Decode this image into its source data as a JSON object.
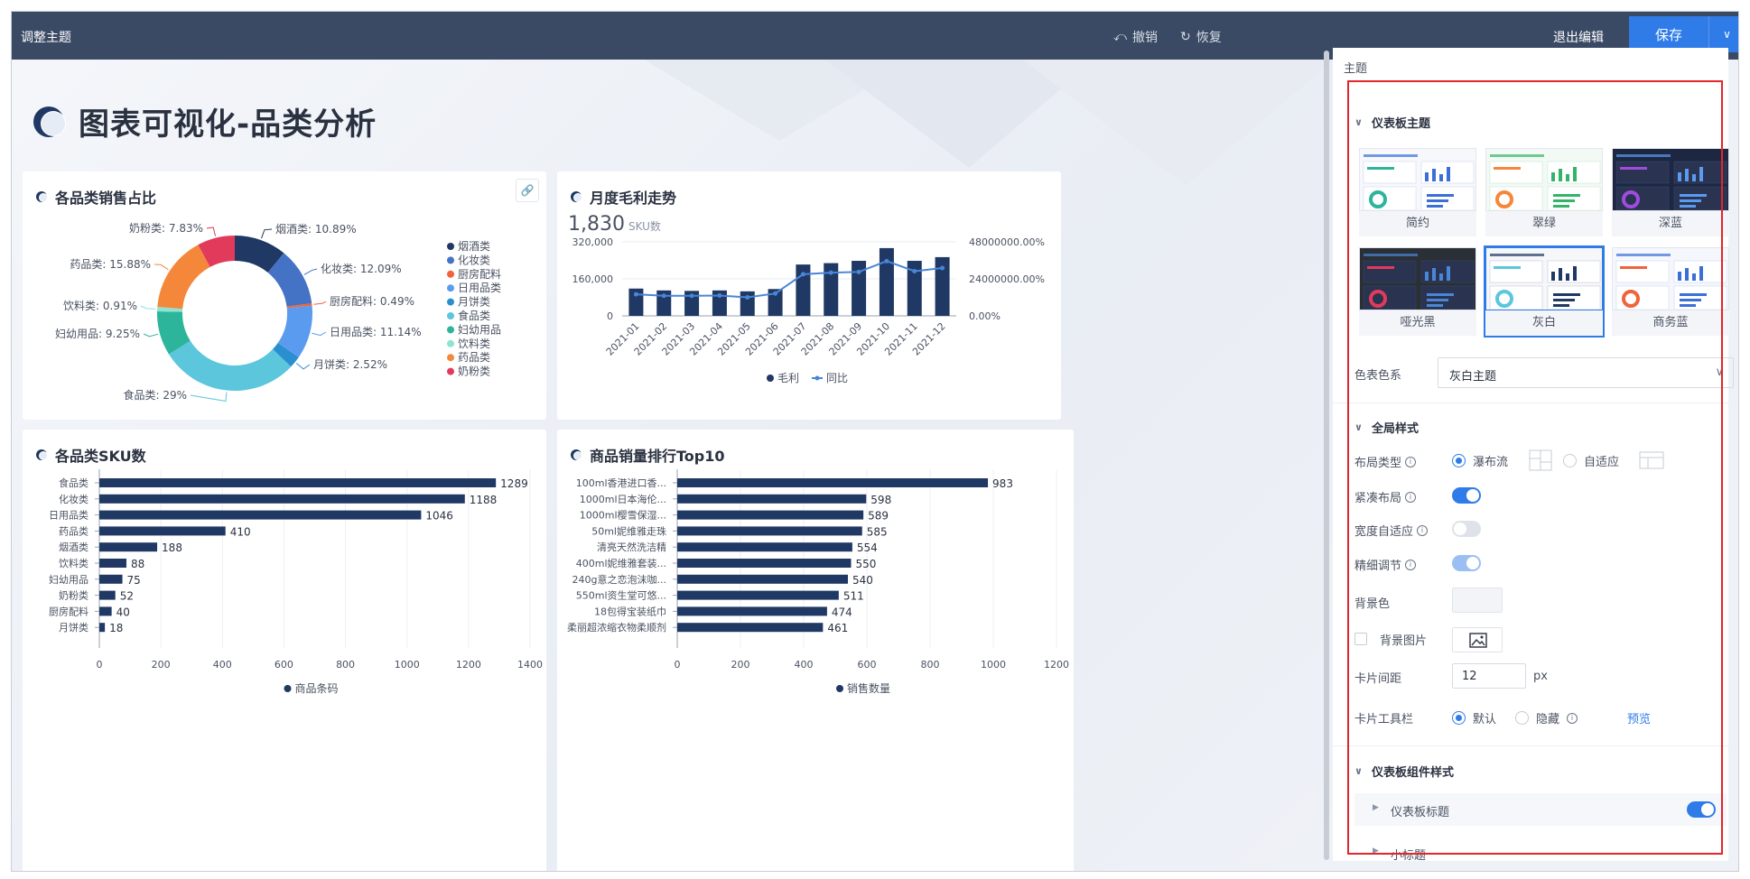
{
  "topbar": {
    "title": "调整主题",
    "undo": "撤销",
    "redo": "恢复",
    "exit": "退出编辑",
    "save": "保存"
  },
  "dashboard": {
    "title": "图表可视化-品类分析"
  },
  "cards": {
    "pie": {
      "title": "各品类销售占比"
    },
    "combo": {
      "title": "月度毛利走势",
      "kpi_value": "1,830",
      "kpi_unit": "SKU数"
    },
    "sku": {
      "title": "各品类SKU数"
    },
    "top10": {
      "title": "商品销量排行Top10"
    }
  },
  "chart_data": [
    {
      "type": "pie",
      "title": "各品类销售占比",
      "slices": [
        {
          "name": "烟酒类",
          "value": 10.89,
          "label": "烟酒类: 10.89%",
          "color": "#1f3864"
        },
        {
          "name": "化妆类",
          "value": 12.09,
          "label": "化妆类: 12.09%",
          "color": "#4472c4"
        },
        {
          "name": "厨房配料",
          "value": 0.49,
          "label": "厨房配料: 0.49%",
          "color": "#f0643b"
        },
        {
          "name": "日用品类",
          "value": 11.14,
          "label": "日用品类: 11.14%",
          "color": "#5b9bef"
        },
        {
          "name": "月饼类",
          "value": 2.52,
          "label": "月饼类: 2.52%",
          "color": "#2a8fcf"
        },
        {
          "name": "食品类",
          "value": 29,
          "label": "食品类: 29%",
          "color": "#5bc6dc"
        },
        {
          "name": "妇幼用品",
          "value": 9.25,
          "label": "妇幼用品: 9.25%",
          "color": "#2db59b"
        },
        {
          "name": "饮料类",
          "value": 0.91,
          "label": "饮料类: 0.91%",
          "color": "#8fe3d3"
        },
        {
          "name": "药品类",
          "value": 15.88,
          "label": "药品类: 15.88%",
          "color": "#f5873a"
        },
        {
          "name": "奶粉类",
          "value": 7.83,
          "label": "奶粉类: 7.83%",
          "color": "#e23a5a"
        }
      ],
      "legend": [
        "烟酒类",
        "化妆类",
        "厨房配料",
        "日用品类",
        "月饼类",
        "食品类",
        "妇幼用品",
        "饮料类",
        "药品类",
        "奶粉类"
      ]
    },
    {
      "type": "bar",
      "title": "月度毛利走势",
      "categories": [
        "2021-01",
        "2021-02",
        "2021-03",
        "2021-04",
        "2021-05",
        "2021-06",
        "2021-07",
        "2021-08",
        "2021-09",
        "2021-10",
        "2021-11",
        "2021-12"
      ],
      "series": [
        {
          "name": "毛利",
          "type": "bar",
          "values": [
            118000,
            110000,
            108000,
            110000,
            106000,
            116000,
            222000,
            228000,
            238000,
            293000,
            238000,
            254000
          ],
          "color": "#1f3864"
        },
        {
          "name": "同比",
          "type": "line",
          "values": [
            14000000,
            13000000,
            13000000,
            13200000,
            12000000,
            14500000,
            27000000,
            28000000,
            28500000,
            35500000,
            29000000,
            31000000
          ],
          "color": "#4a86d6"
        }
      ],
      "y_ticks": [
        "320,000",
        "160,000",
        "0"
      ],
      "y2_ticks": [
        "48000000.00%",
        "24000000.00%",
        "0.00%"
      ],
      "ylim": [
        0,
        320000
      ],
      "y2lim": [
        0,
        48000000
      ]
    },
    {
      "type": "bar",
      "title": "各品类SKU数",
      "orientation": "horizontal",
      "categories": [
        "食品类",
        "化妆类",
        "日用品类",
        "药品类",
        "烟酒类",
        "饮料类",
        "妇幼用品",
        "奶粉类",
        "厨房配料",
        "月饼类"
      ],
      "values": [
        1289,
        1188,
        1046,
        410,
        188,
        88,
        75,
        52,
        40,
        18
      ],
      "x_ticks": [
        "0",
        "200",
        "400",
        "600",
        "800",
        "1000",
        "1200",
        "1400"
      ],
      "xlim": [
        0,
        1400
      ],
      "legend": "商品条码",
      "color": "#1f3864"
    },
    {
      "type": "bar",
      "title": "商品销量排行Top10",
      "orientation": "horizontal",
      "categories": [
        "100ml香港进口香...",
        "1000ml日本海伦...",
        "1000ml樱雪保湿...",
        "50ml妮维雅走珠",
        "清亮天然洗洁精",
        "400ml妮维雅套装...",
        "240g意之恋泡沫咖...",
        "550ml资生堂可悠...",
        "18包得宝装纸巾",
        "柔丽超浓缩衣物柔顺剂"
      ],
      "values": [
        983,
        598,
        589,
        585,
        554,
        550,
        540,
        511,
        474,
        461
      ],
      "x_ticks": [
        "0",
        "200",
        "400",
        "600",
        "800",
        "1000",
        "1200"
      ],
      "xlim": [
        0,
        1200
      ],
      "legend": "销售数量",
      "color": "#1f3864"
    }
  ],
  "panel": {
    "header": "主题",
    "dashboard_theme": "仪表板主题",
    "themes": [
      "简约",
      "翠绿",
      "深蓝",
      "哑光黑",
      "灰白",
      "商务蓝"
    ],
    "selected_theme": "灰白",
    "color_series_label": "色表色系",
    "color_series_value": "灰白主题",
    "global_style": "全局样式",
    "layout_type_label": "布局类型",
    "layout_waterfall": "瀑布流",
    "layout_adaptive": "自适应",
    "compact_label": "紧凑布局",
    "width_adaptive_label": "宽度自适应",
    "fine_tune_label": "精细调节",
    "bg_color_label": "背景色",
    "bg_image_label": "背景图片",
    "card_gap_label": "卡片间距",
    "card_gap_value": "12",
    "card_gap_unit": "px",
    "card_toolbar_label": "卡片工具栏",
    "toolbar_default": "默认",
    "toolbar_hide": "隐藏",
    "preview": "预览",
    "component_style": "仪表板组件样式",
    "dashboard_title_item": "仪表板标题",
    "subtitle_item": "小标题"
  }
}
